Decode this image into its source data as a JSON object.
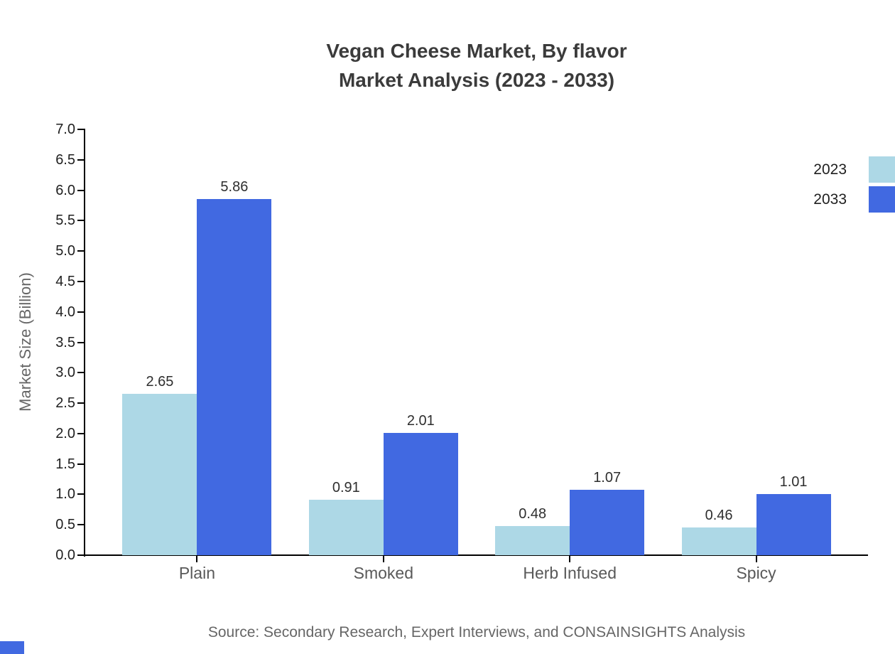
{
  "title": {
    "line1": "Vegan Cheese Market, By flavor",
    "line2": "Market Analysis (2023 - 2033)"
  },
  "chart_data": {
    "type": "bar",
    "categories": [
      "Plain",
      "Smoked",
      "Herb Infused",
      "Spicy"
    ],
    "series": [
      {
        "name": "2023",
        "color": "#add8e6",
        "values": [
          2.65,
          0.91,
          0.48,
          0.46
        ]
      },
      {
        "name": "2033",
        "color": "#4169e1",
        "values": [
          5.86,
          2.01,
          1.07,
          1.01
        ]
      }
    ],
    "title": "Vegan Cheese Market, By flavor Market Analysis (2023 - 2033)",
    "xlabel": "",
    "ylabel": "Market Size (Billion)",
    "ylim": [
      0,
      7
    ],
    "ytick_step": 0.5,
    "ytick_decimals": 1,
    "value_label_decimals": 2,
    "grid": false,
    "legend_position": "right-edge",
    "value_labels": true
  },
  "source": "Source: Secondary Research, Expert Interviews, and CONSAINSIGHTS Analysis",
  "colors": {
    "series_2023": "#add8e6",
    "series_2033": "#4169e1",
    "title_text": "#3b3b3b",
    "tick_text": "#1f1f1f",
    "category_text": "#595959",
    "muted_text": "#666666",
    "axis": "#000000",
    "background": "#ffffff"
  }
}
